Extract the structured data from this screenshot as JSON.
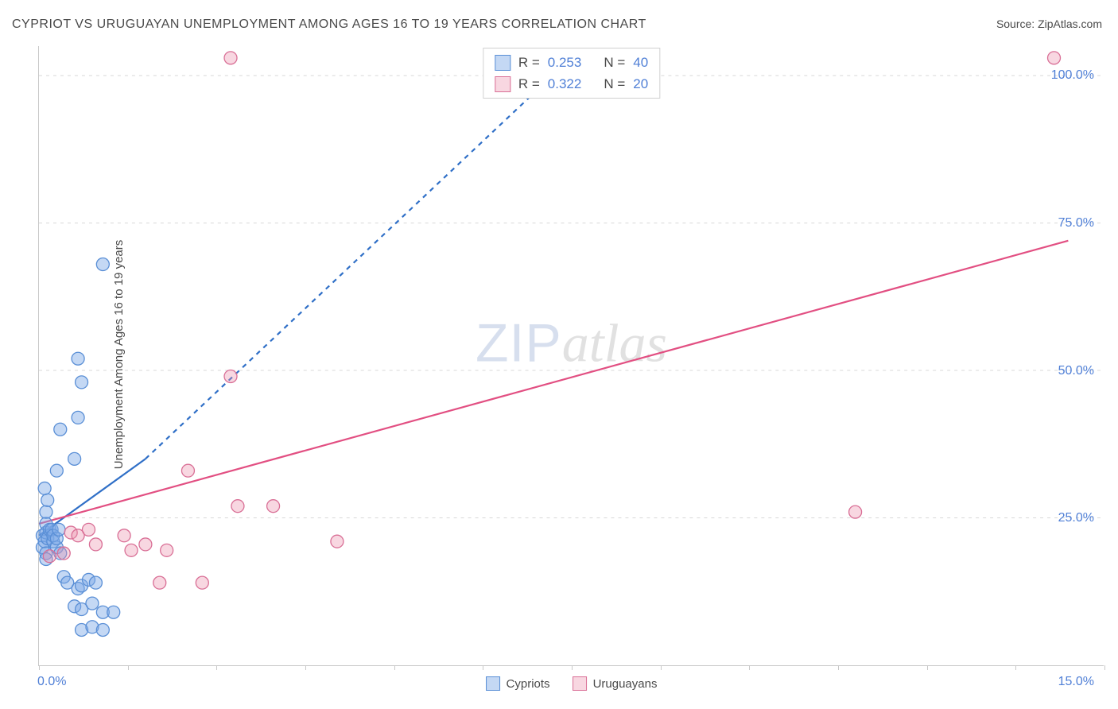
{
  "title": "CYPRIOT VS URUGUAYAN UNEMPLOYMENT AMONG AGES 16 TO 19 YEARS CORRELATION CHART",
  "source_label": "Source: ",
  "source_name": "ZipAtlas.com",
  "ylabel": "Unemployment Among Ages 16 to 19 years",
  "watermark_a": "ZIP",
  "watermark_b": "atlas",
  "chart": {
    "type": "scatter",
    "xlim": [
      0,
      15
    ],
    "ylim": [
      0,
      105
    ],
    "x_ticks": [
      0,
      1.25,
      2.5,
      3.75,
      5,
      6.25,
      7.5,
      8.75,
      10,
      11.25,
      12.5,
      13.75,
      15
    ],
    "x_tick_labels": {
      "0": "0.0%",
      "15": "15.0%"
    },
    "y_ticks": [
      25,
      50,
      75,
      100
    ],
    "y_tick_labels": {
      "25": "25.0%",
      "50": "50.0%",
      "75": "75.0%",
      "100": "100.0%"
    },
    "grid_color": "#d8d8d8",
    "axis_color": "#c9c9c9",
    "label_color": "#4f7fd6",
    "background": "#ffffff",
    "marker_radius": 8,
    "marker_stroke_width": 1.3,
    "series": [
      {
        "name": "Cypriots",
        "fill": "rgba(125,169,230,0.45)",
        "stroke": "#5a8fd6",
        "points": [
          [
            0.05,
            20
          ],
          [
            0.05,
            22
          ],
          [
            0.08,
            21
          ],
          [
            0.1,
            19
          ],
          [
            0.1,
            22.5
          ],
          [
            0.1,
            24
          ],
          [
            0.12,
            21.5
          ],
          [
            0.1,
            18
          ],
          [
            0.15,
            23
          ],
          [
            0.18,
            23
          ],
          [
            0.2,
            21
          ],
          [
            0.2,
            22
          ],
          [
            0.25,
            20
          ],
          [
            0.25,
            21.5
          ],
          [
            0.28,
            23
          ],
          [
            0.3,
            19
          ],
          [
            0.1,
            26
          ],
          [
            0.12,
            28
          ],
          [
            0.08,
            30
          ],
          [
            0.25,
            33
          ],
          [
            0.5,
            35
          ],
          [
            0.3,
            40
          ],
          [
            0.55,
            42
          ],
          [
            0.6,
            48
          ],
          [
            0.55,
            52
          ],
          [
            0.9,
            68
          ],
          [
            0.35,
            15
          ],
          [
            0.4,
            14
          ],
          [
            0.55,
            13
          ],
          [
            0.6,
            13.5
          ],
          [
            0.7,
            14.5
          ],
          [
            0.8,
            14
          ],
          [
            0.5,
            10
          ],
          [
            0.6,
            9.5
          ],
          [
            0.75,
            10.5
          ],
          [
            0.9,
            9
          ],
          [
            1.05,
            9
          ],
          [
            0.6,
            6
          ],
          [
            0.75,
            6.5
          ],
          [
            0.9,
            6
          ]
        ],
        "trend": {
          "solid": [
            [
              0.0,
              22
            ],
            [
              1.5,
              35
            ]
          ],
          "dashed": [
            [
              1.5,
              35
            ],
            [
              7.5,
              103
            ]
          ],
          "color": "#2f6fc7",
          "width": 2.2
        }
      },
      {
        "name": "Uruguayans",
        "fill": "rgba(235,140,170,0.35)",
        "stroke": "#d96f96",
        "points": [
          [
            0.15,
            18.5
          ],
          [
            0.35,
            19
          ],
          [
            0.45,
            22.5
          ],
          [
            0.55,
            22
          ],
          [
            0.7,
            23
          ],
          [
            0.8,
            20.5
          ],
          [
            1.2,
            22
          ],
          [
            1.3,
            19.5
          ],
          [
            1.5,
            20.5
          ],
          [
            1.7,
            14
          ],
          [
            1.8,
            19.5
          ],
          [
            2.1,
            33
          ],
          [
            2.3,
            14
          ],
          [
            2.7,
            49
          ],
          [
            2.8,
            27
          ],
          [
            3.3,
            27
          ],
          [
            4.2,
            21
          ],
          [
            2.7,
            103
          ],
          [
            11.5,
            26
          ],
          [
            14.3,
            103
          ]
        ],
        "trend": {
          "solid": [
            [
              0.0,
              24
            ],
            [
              14.5,
              72
            ]
          ],
          "color": "#e24f82",
          "width": 2.2
        }
      }
    ]
  },
  "stats": [
    {
      "series": "Cypriots",
      "R": "0.253",
      "N": "40"
    },
    {
      "series": "Uruguayans",
      "R": "0.322",
      "N": "20"
    }
  ],
  "legend": [
    {
      "label": "Cypriots",
      "fill": "rgba(125,169,230,0.45)",
      "stroke": "#5a8fd6"
    },
    {
      "label": "Uruguayans",
      "fill": "rgba(235,140,170,0.35)",
      "stroke": "#d96f96"
    }
  ]
}
